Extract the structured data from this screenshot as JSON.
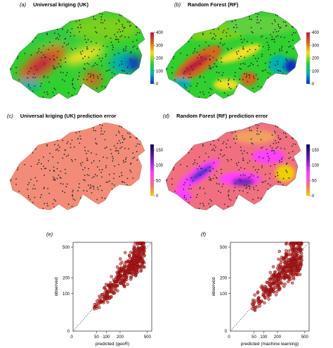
{
  "panels": {
    "a": {
      "letter": "(a)",
      "title": "Universal kriging (UK)"
    },
    "b": {
      "letter": "(b)",
      "title": "Random Forest (RF)"
    },
    "c": {
      "letter": "(c)",
      "title": "Universal kriging (UK) prediction error"
    },
    "d": {
      "letter": "(d)",
      "title": "Random Forest (RF) prediction error"
    },
    "e": {
      "letter": "(e)"
    },
    "f": {
      "letter": "(f)"
    }
  },
  "colorbars": {
    "prediction": {
      "ticks": [
        "400",
        "300",
        "200",
        "100",
        "0"
      ],
      "colors": [
        "#c0143c",
        "#d2691e",
        "#f0e020",
        "#30d030",
        "#00b0b0",
        "#1030c0"
      ]
    },
    "error": {
      "ticks": [
        "150",
        "100",
        "50",
        "0"
      ],
      "colors": [
        "#0a0a50",
        "#7a20c0",
        "#ff40ff",
        "#f07080",
        "#f0d000"
      ]
    }
  },
  "colors": {
    "uk_error_fill": "#f28c78",
    "point": "#2a2a2a",
    "scatter_point": "#b22222",
    "scatter_edge": "#7a0000"
  },
  "chart_data": [
    {
      "type": "scatter",
      "panel": "(e)",
      "xlabel": "predicted (geoR)",
      "ylabel": "observed",
      "scale": "log",
      "xlim": [
        0,
        560
      ],
      "ylim": [
        0,
        560
      ],
      "xticks": [
        "50",
        "100",
        "200",
        "500"
      ],
      "yticks": [
        "100",
        "200",
        "500"
      ],
      "extra_tick": "0",
      "reference_line": "1:1 dotted",
      "grid": false,
      "n_points": 450,
      "seed": 7,
      "spread": 0.22
    },
    {
      "type": "scatter",
      "panel": "(f)",
      "xlabel": "predicted (machine learning)",
      "ylabel": "observed",
      "scale": "log",
      "xlim": [
        0,
        560
      ],
      "ylim": [
        0,
        560
      ],
      "xticks": [
        "50",
        "100",
        "200",
        "500"
      ],
      "yticks": [
        "100",
        "200",
        "500"
      ],
      "extra_tick": "0",
      "reference_line": "1:1 dotted",
      "grid": false,
      "n_points": 450,
      "seed": 13,
      "spread": 0.3
    }
  ]
}
